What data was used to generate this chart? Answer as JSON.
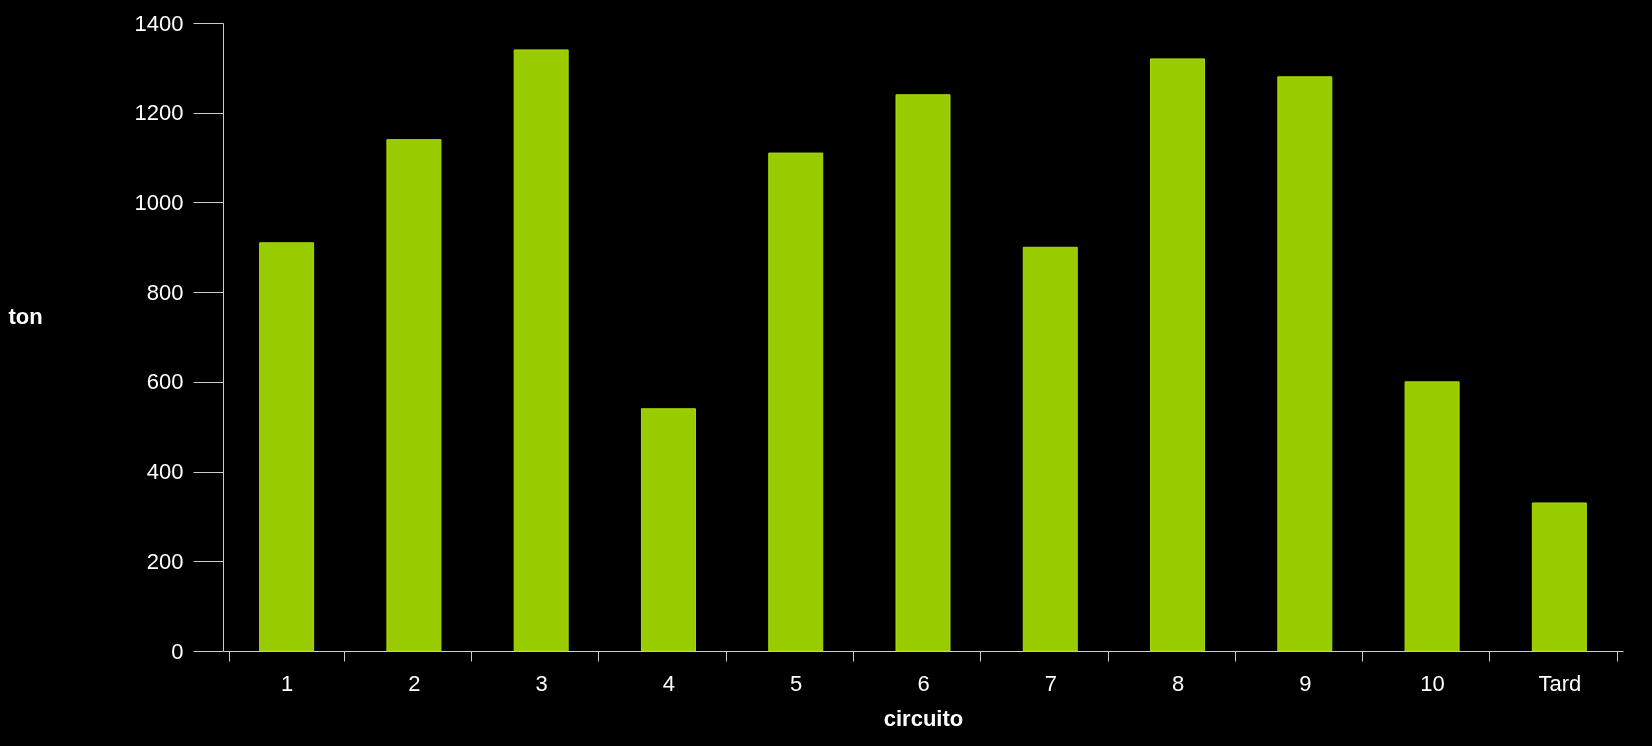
{
  "chart_data": {
    "type": "bar",
    "xlabel": "circuito",
    "ylabel": "ton",
    "categories": [
      "1",
      "2",
      "3",
      "4",
      "5",
      "6",
      "7",
      "8",
      "9",
      "10",
      "Tard"
    ],
    "values": [
      910,
      1140,
      1340,
      540,
      1110,
      1240,
      900,
      1320,
      1280,
      600,
      330
    ],
    "color": "#99cc00",
    "ylim": [
      0,
      1400
    ],
    "yticks": [
      0,
      200,
      400,
      600,
      800,
      1000,
      1200,
      1400
    ]
  }
}
